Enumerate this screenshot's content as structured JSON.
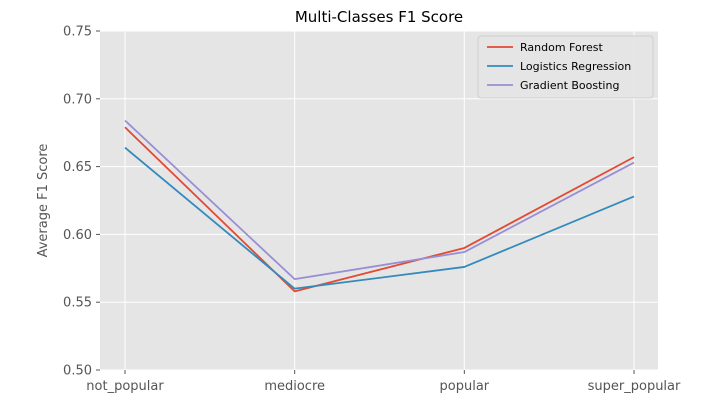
{
  "chart_data": {
    "type": "line",
    "title": "Multi-Classes F1 Score",
    "xlabel": "",
    "ylabel": "Average F1 Score",
    "categories": [
      "not_popular",
      "mediocre",
      "popular",
      "super_popular"
    ],
    "ylim": [
      0.5,
      0.75
    ],
    "yticks": [
      "0.50",
      "0.55",
      "0.60",
      "0.65",
      "0.70",
      "0.75"
    ],
    "grid": true,
    "legend_position": "top-right",
    "series": [
      {
        "name": "Random Forest",
        "color": "#E24A33",
        "values": [
          0.679,
          0.558,
          0.59,
          0.657
        ]
      },
      {
        "name": "Logistics Regression",
        "color": "#348ABD",
        "values": [
          0.664,
          0.56,
          0.576,
          0.628
        ]
      },
      {
        "name": "Gradient Boosting",
        "color": "#988ED5",
        "values": [
          0.684,
          0.567,
          0.587,
          0.653
        ]
      }
    ]
  },
  "colors": {
    "plot_background": "#E5E5E5",
    "grid": "#FFFFFF"
  }
}
